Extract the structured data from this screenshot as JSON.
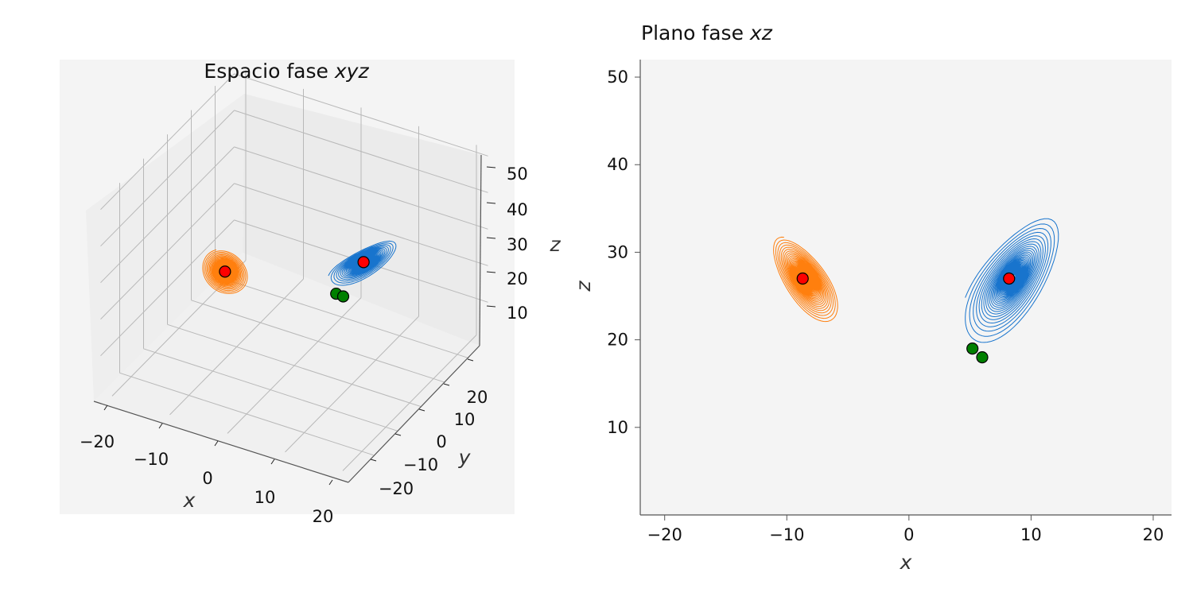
{
  "chart_data": [
    {
      "type": "line",
      "projection": "3d",
      "title": "Espacio fase",
      "title_var": "xyz",
      "xlabel": "x",
      "ylabel": "y",
      "zlabel": "z",
      "xticks": [
        "−20",
        "−10",
        "0",
        "10",
        "20"
      ],
      "yticks": [
        "−20",
        "−10",
        "0",
        "10",
        "20"
      ],
      "zticks": [
        "10",
        "20",
        "30",
        "40",
        "50"
      ],
      "xlim": [
        -22,
        22
      ],
      "ylim": [
        -28,
        28
      ],
      "zlim": [
        0,
        52
      ],
      "grid": true,
      "series": [
        {
          "color": "#1874cd"
        },
        {
          "color": "#ff7f0e"
        }
      ],
      "markers": [
        {
          "color": "#ff0000",
          "x": -8.5,
          "y": -8.5,
          "z": 27
        },
        {
          "color": "#ff0000",
          "x": 8.5,
          "y": 8.5,
          "z": 27
        },
        {
          "color": "#008000",
          "x": 5.2,
          "y": 5.0,
          "z": 19
        },
        {
          "color": "#008000",
          "x": 6.0,
          "y": 6.0,
          "z": 18
        }
      ]
    },
    {
      "type": "line",
      "title": "Plano fase",
      "title_var": "xz",
      "xlabel": "x",
      "ylabel": "z",
      "xticks": [
        "−20",
        "−10",
        "0",
        "10",
        "20"
      ],
      "yticks": [
        "10",
        "20",
        "30",
        "40",
        "50"
      ],
      "xlim": [
        -22,
        21.5
      ],
      "ylim": [
        0,
        52
      ],
      "grid": false,
      "series": [
        {
          "color": "#1874cd"
        },
        {
          "color": "#ff7f0e"
        }
      ],
      "markers": [
        {
          "color": "#ff0000",
          "x": -8.7,
          "z": 27
        },
        {
          "color": "#ff0000",
          "x": 8.2,
          "z": 27
        },
        {
          "color": "#008000",
          "x": 5.2,
          "z": 19
        },
        {
          "color": "#008000",
          "x": 6.0,
          "z": 18
        }
      ]
    }
  ]
}
